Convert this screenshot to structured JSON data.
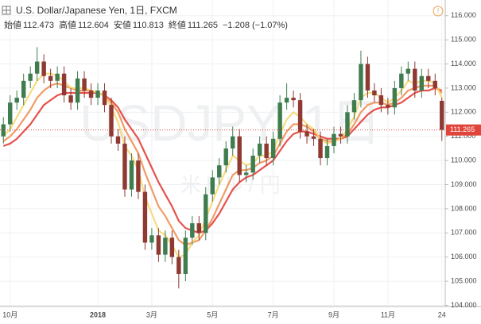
{
  "chart_data": {
    "type": "candlestick",
    "title": "U.S. Dollar/Japanese Yen, 1日, FXCM",
    "ohlc_labels": [
      "始値",
      "高値",
      "安値",
      "終値"
    ],
    "change": "−1.208 (−1.07%)",
    "watermark": "USDJPY, 1日",
    "watermark_sub": "米ドル / 円",
    "categories": [
      null,
      "10月",
      null,
      null,
      null,
      null,
      null,
      null,
      null,
      null,
      null,
      null,
      null,
      null,
      "2018",
      null,
      null,
      null,
      null,
      null,
      null,
      null,
      "3月",
      null,
      null,
      null,
      null,
      null,
      null,
      null,
      null,
      "5月",
      null,
      null,
      null,
      null,
      null,
      null,
      null,
      null,
      "7月",
      null,
      null,
      null,
      null,
      null,
      null,
      null,
      null,
      "9月",
      null,
      null,
      null,
      null,
      null,
      null,
      null,
      "11月",
      null,
      null,
      null,
      null,
      null,
      null,
      null,
      "24"
    ],
    "open": [
      111.0,
      111.5,
      112.4,
      112.6,
      113.3,
      113.6,
      114.1,
      113.5,
      113.3,
      113.6,
      112.7,
      112.4,
      113.4,
      112.9,
      112.6,
      112.9,
      112.3,
      111.0,
      110.7,
      108.8,
      110.0,
      108.7,
      106.6,
      106.9,
      106.1,
      106.8,
      106.0,
      105.3,
      106.8,
      107.4,
      107.0,
      108.6,
      109.3,
      109.8,
      110.5,
      111.0,
      109.4,
      109.5,
      110.2,
      110.7,
      110.1,
      110.9,
      112.4,
      112.6,
      112.5,
      111.2,
      111.0,
      110.9,
      110.1,
      110.6,
      111.1,
      111.0,
      112.0,
      112.5,
      114.0,
      112.9,
      112.7,
      112.3,
      112.2,
      113.0,
      113.6,
      113.8,
      112.9,
      113.5,
      113.3,
      112.473
    ],
    "high": [
      111.8,
      112.7,
      112.9,
      113.6,
      113.9,
      114.7,
      114.4,
      113.8,
      113.9,
      113.9,
      113.0,
      113.7,
      113.7,
      113.2,
      113.2,
      113.2,
      112.6,
      111.3,
      111.0,
      110.3,
      110.3,
      109.0,
      107.2,
      107.2,
      107.1,
      107.1,
      106.3,
      107.1,
      107.7,
      107.7,
      108.9,
      109.6,
      110.1,
      110.8,
      111.4,
      111.3,
      109.8,
      110.5,
      111.0,
      111.0,
      111.2,
      112.7,
      113.2,
      112.9,
      112.8,
      111.5,
      111.3,
      111.2,
      110.9,
      111.4,
      111.4,
      112.3,
      112.8,
      114.55,
      114.3,
      113.2,
      113.0,
      112.6,
      113.3,
      113.9,
      114.1,
      114.1,
      113.8,
      113.8,
      113.6,
      112.604
    ],
    "low": [
      110.7,
      111.2,
      112.1,
      112.3,
      113.0,
      113.3,
      113.2,
      113.0,
      113.0,
      112.4,
      112.1,
      112.1,
      112.6,
      112.3,
      112.3,
      112.0,
      110.7,
      110.4,
      108.5,
      108.5,
      108.4,
      106.3,
      106.3,
      105.8,
      105.8,
      105.7,
      104.7,
      105.0,
      106.5,
      106.7,
      106.7,
      108.3,
      109.0,
      109.5,
      110.2,
      109.1,
      109.1,
      109.2,
      109.9,
      109.8,
      109.8,
      110.6,
      112.1,
      112.2,
      110.9,
      110.7,
      110.6,
      109.8,
      109.8,
      110.3,
      110.7,
      110.7,
      111.7,
      112.2,
      112.6,
      112.4,
      112.0,
      111.9,
      111.9,
      112.7,
      113.3,
      112.6,
      112.6,
      113.0,
      112.7,
      110.813
    ],
    "close": [
      111.5,
      112.4,
      112.6,
      113.3,
      113.6,
      114.1,
      113.5,
      113.3,
      113.6,
      112.7,
      112.4,
      113.4,
      112.9,
      112.6,
      112.9,
      112.3,
      111.0,
      110.7,
      108.8,
      110.0,
      108.7,
      106.6,
      106.9,
      106.1,
      106.8,
      106.0,
      105.3,
      106.8,
      107.4,
      107.0,
      108.6,
      109.3,
      109.8,
      110.5,
      111.0,
      109.4,
      109.5,
      110.2,
      110.7,
      110.1,
      110.9,
      112.4,
      112.6,
      112.5,
      111.2,
      111.0,
      110.9,
      110.1,
      110.6,
      111.1,
      111.0,
      112.0,
      112.5,
      114.0,
      112.9,
      112.7,
      112.3,
      112.2,
      113.0,
      113.6,
      113.8,
      112.9,
      113.5,
      113.3,
      113.0,
      111.265
    ],
    "up_color": "#3f7d4f",
    "down_color": "#8e3a32",
    "series": [
      {
        "color": "#e3342f",
        "values": [
          110.6,
          110.7,
          110.9,
          111.2,
          111.5,
          111.9,
          112.3,
          112.5,
          112.7,
          112.8,
          112.8,
          112.8,
          112.8,
          112.8,
          112.8,
          112.7,
          112.5,
          112.2,
          111.7,
          111.3,
          110.9,
          110.3,
          109.7,
          109.1,
          108.6,
          108.1,
          107.5,
          107.2,
          107.1,
          107.0,
          107.1,
          107.4,
          107.8,
          108.3,
          108.8,
          109.1,
          109.3,
          109.4,
          109.6,
          109.8,
          110.0,
          110.4,
          110.8,
          111.1,
          111.2,
          111.2,
          111.1,
          111.0,
          110.9,
          110.9,
          110.9,
          111.0,
          111.3,
          111.6,
          111.9,
          112.1,
          112.2,
          112.2,
          112.3,
          112.4,
          112.6,
          112.8,
          112.9,
          112.9,
          113.0,
          112.9
        ]
      },
      {
        "color": "#f08a4b",
        "values": [
          110.8,
          111.0,
          111.3,
          111.7,
          112.1,
          112.6,
          112.9,
          113.1,
          113.2,
          113.1,
          113.0,
          112.9,
          112.9,
          112.9,
          112.8,
          112.7,
          112.4,
          112.0,
          111.3,
          110.8,
          110.3,
          109.5,
          108.8,
          108.1,
          107.7,
          107.2,
          106.7,
          106.5,
          106.6,
          106.7,
          107.1,
          107.6,
          108.2,
          108.8,
          109.4,
          109.6,
          109.6,
          109.7,
          109.9,
          110.0,
          110.2,
          110.7,
          111.2,
          111.5,
          111.5,
          111.4,
          111.2,
          110.9,
          110.8,
          110.8,
          110.9,
          111.1,
          111.5,
          112.0,
          112.3,
          112.4,
          112.4,
          112.3,
          112.4,
          112.6,
          112.9,
          113.0,
          113.1,
          113.1,
          113.1,
          112.8
        ]
      },
      {
        "color": "#f7d56a",
        "values": [
          111.0,
          111.3,
          111.8,
          112.3,
          112.8,
          113.3,
          113.6,
          113.6,
          113.5,
          113.3,
          113.0,
          113.0,
          113.0,
          112.9,
          112.8,
          112.7,
          112.2,
          111.6,
          110.6,
          110.2,
          109.6,
          108.5,
          107.8,
          107.1,
          106.9,
          106.5,
          106.0,
          106.1,
          106.6,
          106.9,
          107.6,
          108.3,
          109.0,
          109.6,
          110.2,
          110.0,
          109.8,
          109.9,
          110.2,
          110.2,
          110.4,
          111.1,
          111.7,
          112.0,
          111.8,
          111.5,
          111.3,
          110.9,
          110.7,
          110.8,
          110.9,
          111.3,
          111.8,
          112.6,
          112.8,
          112.8,
          112.6,
          112.4,
          112.6,
          112.9,
          113.3,
          113.2,
          113.3,
          113.3,
          113.2,
          112.6
        ]
      }
    ],
    "ylim": [
      103.95,
      116.65
    ],
    "yticks": [
      {
        "value": 104,
        "label": "104.000"
      },
      {
        "value": 105,
        "label": "105.000"
      },
      {
        "value": 106,
        "label": "106.000"
      },
      {
        "value": 107,
        "label": "107.000"
      },
      {
        "value": 108,
        "label": "108.000"
      },
      {
        "value": 109,
        "label": "109.000"
      },
      {
        "value": 110,
        "label": "110.000"
      },
      {
        "value": 111,
        "label": "111.000"
      },
      {
        "value": 112,
        "label": "112.000"
      },
      {
        "value": 113,
        "label": "113.000"
      },
      {
        "value": 114,
        "label": "114.000"
      },
      {
        "value": 115,
        "label": "115.000"
      },
      {
        "value": 116,
        "label": "116.000"
      }
    ],
    "grid": true
  }
}
